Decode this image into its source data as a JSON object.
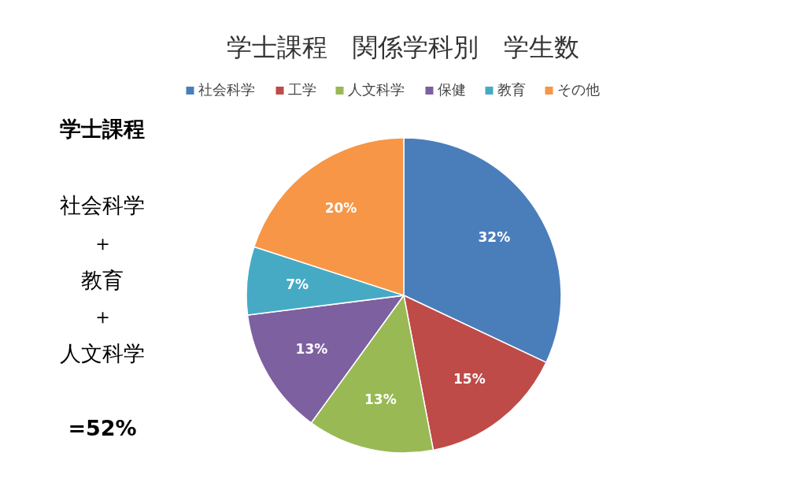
{
  "chart_data": {
    "type": "pie",
    "title": "学士課程　関係学科別　学生数",
    "categories": [
      "社会科学",
      "工学",
      "人文科学",
      "保健",
      "教育",
      "その他"
    ],
    "values": [
      32,
      15,
      13,
      13,
      7,
      20
    ],
    "colors": [
      "#4a7ebb",
      "#be4b48",
      "#98b954",
      "#7d60a0",
      "#46aac5",
      "#f79646"
    ],
    "value_labels": [
      "32%",
      "15%",
      "13%",
      "13%",
      "7%",
      "20%"
    ],
    "legend": "top",
    "annotations": [
      "学士課程",
      "社会科学",
      "＋",
      "教育",
      "＋",
      "人文科学",
      "=52%"
    ]
  }
}
